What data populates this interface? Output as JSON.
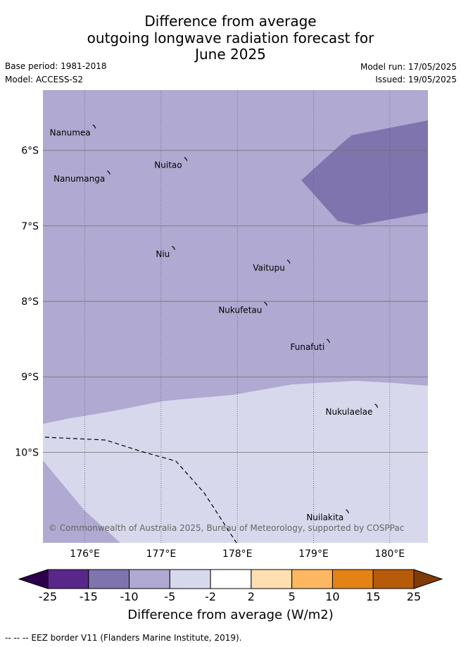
{
  "header": {
    "title_lines": [
      "Difference from average",
      "outgoing longwave radiation forecast for",
      "June 2025"
    ],
    "base_period": "Base period: 1981-2018",
    "model": "Model: ACCESS-S2",
    "model_run": "Model run: 17/05/2025",
    "issued": "Issued: 19/05/2025"
  },
  "map": {
    "lon_range": [
      175.45,
      180.5
    ],
    "lat_range": [
      -11.2,
      -5.2
    ],
    "lat_ticks": [
      {
        "value": -6,
        "label": "6°S"
      },
      {
        "value": -7,
        "label": "7°S"
      },
      {
        "value": -8,
        "label": "8°S"
      },
      {
        "value": -9,
        "label": "9°S"
      },
      {
        "value": -10,
        "label": "10°S"
      }
    ],
    "lon_ticks": [
      {
        "value": 176,
        "label": "176°E"
      },
      {
        "value": 177,
        "label": "177°E"
      },
      {
        "value": 178,
        "label": "178°E"
      },
      {
        "value": 179,
        "label": "179°E"
      },
      {
        "value": 180,
        "label": "180°E"
      }
    ],
    "places": [
      {
        "name": "Nanumea",
        "lon": 176.13,
        "lat": -5.68
      },
      {
        "name": "Nuitao",
        "lon": 177.33,
        "lat": -6.11
      },
      {
        "name": "Nanumanga",
        "lon": 176.32,
        "lat": -6.29
      },
      {
        "name": "Niu",
        "lon": 177.17,
        "lat": -7.29
      },
      {
        "name": "Vaitupu",
        "lon": 178.68,
        "lat": -7.47
      },
      {
        "name": "Nukufetau",
        "lon": 178.38,
        "lat": -8.03
      },
      {
        "name": "Funafuti",
        "lon": 179.2,
        "lat": -8.52
      },
      {
        "name": "Nukulaelae",
        "lon": 179.83,
        "lat": -9.38
      },
      {
        "name": "Nuilakita",
        "lon": 179.45,
        "lat": -10.78
      }
    ],
    "copyright": "© Commonwealth of Australia 2025, Bureau of Meteorology, supported by COSPPac",
    "colors": {
      "band_-15_-10": "#8074ae",
      "band_-10_-5": "#b0a9d1",
      "band_-5_-2": "#d7d8ec"
    }
  },
  "colorbar": {
    "ticks": [
      "-25",
      "-15",
      "-10",
      "-5",
      "-2",
      "2",
      "5",
      "10",
      "15",
      "25"
    ],
    "colors": [
      "#592789",
      "#8074ae",
      "#b0a9d1",
      "#d7d8ec",
      "#ffffff",
      "#ffdfb0",
      "#fdb761",
      "#e38316",
      "#b65b0a"
    ],
    "low_extend_color": "#2d004b",
    "high_extend_color": "#7f3b08",
    "label": "Difference from average (W/m2)"
  },
  "footer": {
    "legend_note": "-- -- -- EEZ border V11 (Flanders Marine Institute, 2019)."
  }
}
